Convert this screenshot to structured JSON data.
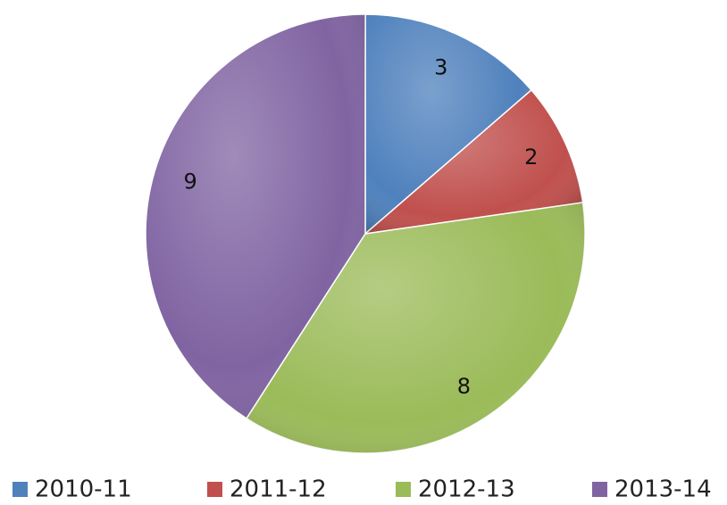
{
  "chart_data": {
    "type": "pie",
    "categories": [
      "2010-11",
      "2011-12",
      "2012-13",
      "2013-14"
    ],
    "values": [
      3,
      2,
      8,
      9
    ],
    "colors": [
      "#4f81bd",
      "#c0504d",
      "#9bbb59",
      "#8064a2"
    ],
    "legend": "bottom"
  }
}
